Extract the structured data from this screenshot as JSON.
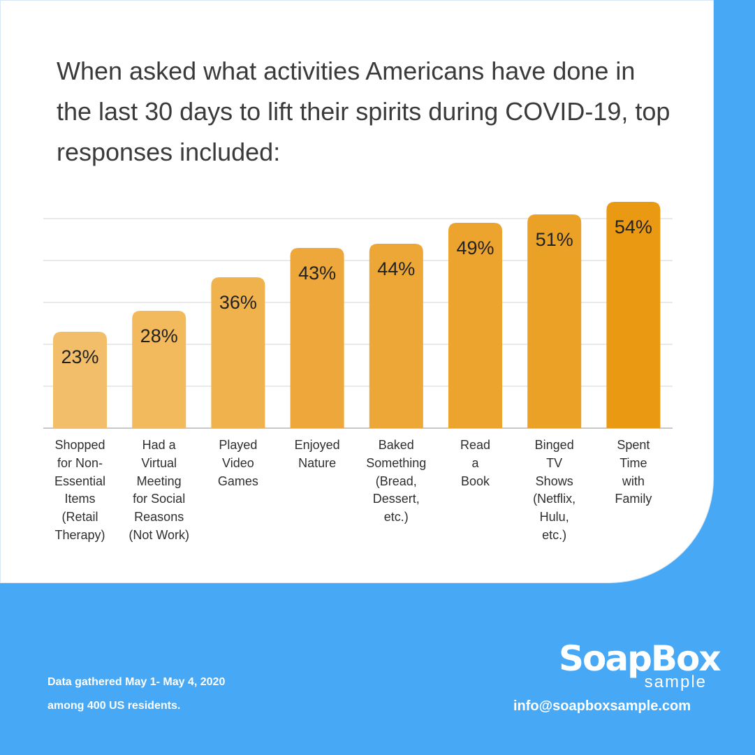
{
  "title": "When asked what activities Americans have done in the last 30 days to lift their spirits during COVID-19, top responses included:",
  "chart_data": {
    "type": "bar",
    "title": "When asked what activities Americans have done in the last 30 days to lift their spirits during COVID-19, top responses included:",
    "xlabel": "",
    "ylabel": "",
    "ylim": [
      0,
      60
    ],
    "grid": true,
    "categories": [
      "Shopped\nfor Non-\nEssential\nItems\n(Retail\nTherapy)",
      "Had a\nVirtual\nMeeting\nfor Social\nReasons\n(Not Work)",
      "Played\nVideo\nGames",
      "Enjoyed\nNature",
      "Baked\nSomething\n(Bread,\nDessert,\netc.)",
      "Read\na\nBook",
      "Binged\nTV\nShows\n(Netflix,\nHulu,\netc.)",
      "Spent\nTime\nwith\nFamily"
    ],
    "values": [
      23,
      28,
      36,
      43,
      44,
      49,
      51,
      54
    ],
    "value_labels": [
      "23%",
      "28%",
      "36%",
      "43%",
      "44%",
      "49%",
      "51%",
      "54%"
    ],
    "bar_colors": [
      "#f3be6a",
      "#f2b95d",
      "#f0b24d",
      "#eda73a",
      "#eca736",
      "#eca42f",
      "#eba026",
      "#ea9a12"
    ]
  },
  "footnote": {
    "line1": "Data gathered May 1- May 4, 2020",
    "line2": "among 400 US residents."
  },
  "logo": {
    "main": "SoapBox",
    "sub": "sample"
  },
  "email": "info@soapboxsample.com"
}
